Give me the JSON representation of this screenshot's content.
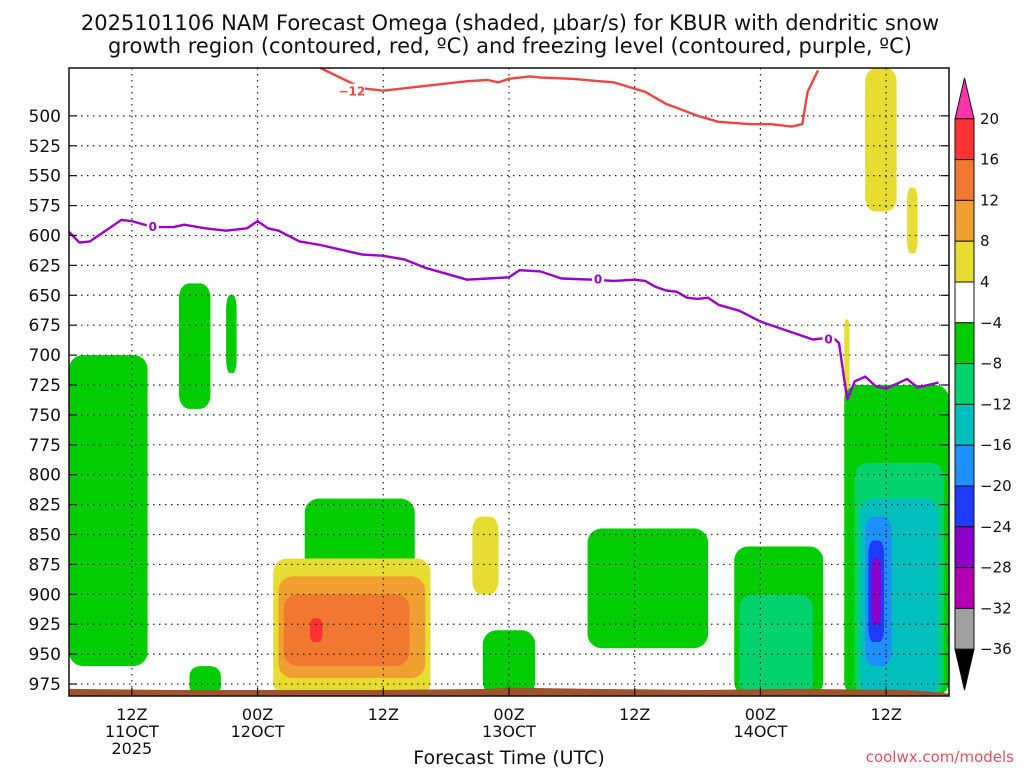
{
  "page": {
    "title_line1": "2025101106 NAM Forecast Omega (shaded, μbar/s) for KBUR with dendritic snow",
    "title_line2": "growth region (contoured, red, ºC) and freezing level (contoured, purple, ºC)",
    "credit": "coolwx.com/models"
  },
  "chart_data": {
    "type": "heatmap",
    "xlabel": "Forecast Time (UTC)",
    "ylabel": "",
    "x_range_hours": [
      0,
      84
    ],
    "y_range": [
      460,
      985
    ],
    "y_scale": "pressure (inverted, hPa)",
    "y_ticks": [
      500,
      525,
      550,
      575,
      600,
      625,
      650,
      675,
      700,
      725,
      750,
      775,
      800,
      825,
      850,
      875,
      900,
      925,
      950,
      975
    ],
    "x_ticks": [
      {
        "hour": 6,
        "lines": [
          "12Z",
          "11OCT",
          "2025"
        ]
      },
      {
        "hour": 18,
        "lines": [
          "00Z",
          "12OCT"
        ]
      },
      {
        "hour": 30,
        "lines": [
          "12Z"
        ]
      },
      {
        "hour": 42,
        "lines": [
          "00Z",
          "13OCT"
        ]
      },
      {
        "hour": 54,
        "lines": [
          "12Z"
        ]
      },
      {
        "hour": 66,
        "lines": [
          "00Z",
          "14OCT"
        ]
      },
      {
        "hour": 78,
        "lines": [
          "12Z"
        ]
      }
    ],
    "grid": true,
    "colorbar": {
      "labels": [
        "20",
        "16",
        "12",
        "8",
        "4",
        "−4",
        "−8",
        "−12",
        "−16",
        "−20",
        "−24",
        "−28",
        "−32",
        "−36"
      ],
      "bins": [
        {
          "color": "#ff33aa"
        },
        {
          "color": "#ff3333"
        },
        {
          "color": "#f07830"
        },
        {
          "color": "#f0a030"
        },
        {
          "color": "#e6dc32"
        },
        {
          "color": "#ffffff"
        },
        {
          "color": "#00cc00"
        },
        {
          "color": "#00d26e"
        },
        {
          "color": "#00bebe"
        },
        {
          "color": "#1e90ff"
        },
        {
          "color": "#1e3cff"
        },
        {
          "color": "#8c00c8"
        },
        {
          "color": "#b400b4"
        },
        {
          "color": "#a0a0a0"
        },
        {
          "color": "#000000"
        }
      ],
      "placement": "right"
    },
    "contours": [
      {
        "label": "−12",
        "color": "#ee4444",
        "points": [
          [
            24,
            460
          ],
          [
            28,
            477
          ],
          [
            30,
            479
          ],
          [
            34,
            475
          ],
          [
            38,
            471
          ],
          [
            40,
            470
          ],
          [
            41,
            472
          ],
          [
            42,
            469
          ],
          [
            44,
            467
          ],
          [
            45,
            468
          ],
          [
            48,
            469
          ],
          [
            52,
            472
          ],
          [
            55,
            480
          ],
          [
            57,
            490
          ],
          [
            60,
            500
          ],
          [
            62,
            505
          ],
          [
            65,
            507
          ],
          [
            67,
            507
          ],
          [
            69,
            509
          ],
          [
            70,
            507
          ],
          [
            70.5,
            480
          ],
          [
            71.5,
            462
          ]
        ]
      },
      {
        "label": "0",
        "color": "#9900cc",
        "points": [
          [
            0,
            597
          ],
          [
            1,
            606
          ],
          [
            2,
            605
          ],
          [
            4,
            593
          ],
          [
            5,
            587
          ],
          [
            6,
            588
          ],
          [
            8,
            593
          ],
          [
            10,
            593
          ],
          [
            11,
            591
          ],
          [
            13,
            594
          ],
          [
            15,
            596
          ],
          [
            17,
            594
          ],
          [
            18,
            588
          ],
          [
            19,
            594
          ],
          [
            20,
            596
          ],
          [
            22,
            605
          ],
          [
            24,
            608
          ],
          [
            26,
            612
          ],
          [
            28,
            616
          ],
          [
            30,
            617
          ],
          [
            32,
            620
          ],
          [
            34,
            627
          ],
          [
            36,
            632
          ],
          [
            38,
            637
          ],
          [
            40,
            636
          ],
          [
            42,
            635
          ],
          [
            43,
            629
          ],
          [
            45,
            630
          ],
          [
            47,
            636
          ],
          [
            50,
            637
          ],
          [
            52,
            638
          ],
          [
            54,
            637
          ],
          [
            55,
            638
          ],
          [
            56,
            643
          ],
          [
            57,
            646
          ],
          [
            58,
            647
          ],
          [
            59,
            652
          ],
          [
            60,
            653
          ],
          [
            61,
            652
          ],
          [
            62,
            658
          ],
          [
            64,
            663
          ],
          [
            66,
            672
          ],
          [
            68,
            678
          ],
          [
            70,
            684
          ],
          [
            71,
            687
          ],
          [
            72,
            686
          ],
          [
            73,
            686
          ],
          [
            73.5,
            690
          ],
          [
            74,
            720
          ],
          [
            74.3,
            737
          ],
          [
            75,
            722
          ],
          [
            76,
            718
          ],
          [
            77,
            726
          ],
          [
            78,
            728
          ],
          [
            79,
            724
          ],
          [
            80,
            720
          ],
          [
            81,
            727
          ],
          [
            82,
            725
          ],
          [
            83,
            723
          ]
        ]
      }
    ],
    "shaded_regions": [
      {
        "value_bin": "−8 to −4",
        "x_range": [
          0,
          7.5
        ],
        "y_range": [
          700,
          960
        ]
      },
      {
        "value_bin": "−8 to −4",
        "x_range": [
          10.5,
          13.5
        ],
        "y_range": [
          640,
          745
        ]
      },
      {
        "value_bin": "−8 to −4",
        "x_range": [
          15,
          16
        ],
        "y_range": [
          650,
          715
        ]
      },
      {
        "value_bin": "−8 to −4",
        "x_range": [
          22.5,
          33
        ],
        "y_range": [
          820,
          895
        ]
      },
      {
        "value_bin": "−8 to −4",
        "x_range": [
          11.5,
          14.5
        ],
        "y_range": [
          960,
          985
        ]
      },
      {
        "value_bin": "4 to 8",
        "x_range": [
          19.5,
          34.5
        ],
        "y_range": [
          870,
          985
        ]
      },
      {
        "value_bin": "8 to 12",
        "x_range": [
          20,
          34
        ],
        "y_range": [
          885,
          970
        ]
      },
      {
        "value_bin": "12 to 16",
        "x_range": [
          20.5,
          32.5
        ],
        "y_range": [
          900,
          960
        ]
      },
      {
        "value_bin": "16 to 20",
        "x_range": [
          23,
          24.2
        ],
        "y_range": [
          920,
          940
        ]
      },
      {
        "value_bin": "4 to 8",
        "x_range": [
          38.5,
          41
        ],
        "y_range": [
          835,
          900
        ]
      },
      {
        "value_bin": "−8 to −4",
        "x_range": [
          39.5,
          44.5
        ],
        "y_range": [
          930,
          985
        ]
      },
      {
        "value_bin": "−8 to −4",
        "x_range": [
          49.5,
          61
        ],
        "y_range": [
          845,
          945
        ]
      },
      {
        "value_bin": "−8 to −4",
        "x_range": [
          63.5,
          72
        ],
        "y_range": [
          860,
          985
        ]
      },
      {
        "value_bin": "−12 to −8",
        "x_range": [
          64,
          71
        ],
        "y_range": [
          900,
          985
        ]
      },
      {
        "value_bin": "4 to 8",
        "x_range": [
          76,
          79
        ],
        "y_range": [
          460,
          580
        ]
      },
      {
        "value_bin": "4 to 8",
        "x_range": [
          80,
          81
        ],
        "y_range": [
          560,
          615
        ]
      },
      {
        "value_bin": "4 to 8",
        "x_range": [
          74,
          74.5
        ],
        "y_range": [
          670,
          740
        ]
      },
      {
        "value_bin": "−8 to −4",
        "x_range": [
          74,
          84
        ],
        "y_range": [
          725,
          985
        ]
      },
      {
        "value_bin": "−12 to −8",
        "x_range": [
          75,
          83.5
        ],
        "y_range": [
          790,
          985
        ]
      },
      {
        "value_bin": "−16 to −12",
        "x_range": [
          75.5,
          83
        ],
        "y_range": [
          820,
          985
        ]
      },
      {
        "value_bin": "−20 to −16",
        "x_range": [
          76,
          78.5
        ],
        "y_range": [
          835,
          960
        ]
      },
      {
        "value_bin": "−24 to −20",
        "x_range": [
          76.3,
          77.8
        ],
        "y_range": [
          855,
          940
        ]
      },
      {
        "value_bin": "−28 to −24",
        "x_range": [
          76.6,
          77.5
        ],
        "y_range": [
          870,
          925
        ]
      }
    ],
    "ground_color": "#a0522d",
    "ground_surface": [
      [
        0,
        979
      ],
      [
        10,
        980
      ],
      [
        20,
        980
      ],
      [
        30,
        980
      ],
      [
        40,
        979
      ],
      [
        42,
        978
      ],
      [
        50,
        979
      ],
      [
        60,
        980
      ],
      [
        70,
        979
      ],
      [
        80,
        980
      ],
      [
        83,
        982
      ],
      [
        84,
        983
      ]
    ]
  }
}
